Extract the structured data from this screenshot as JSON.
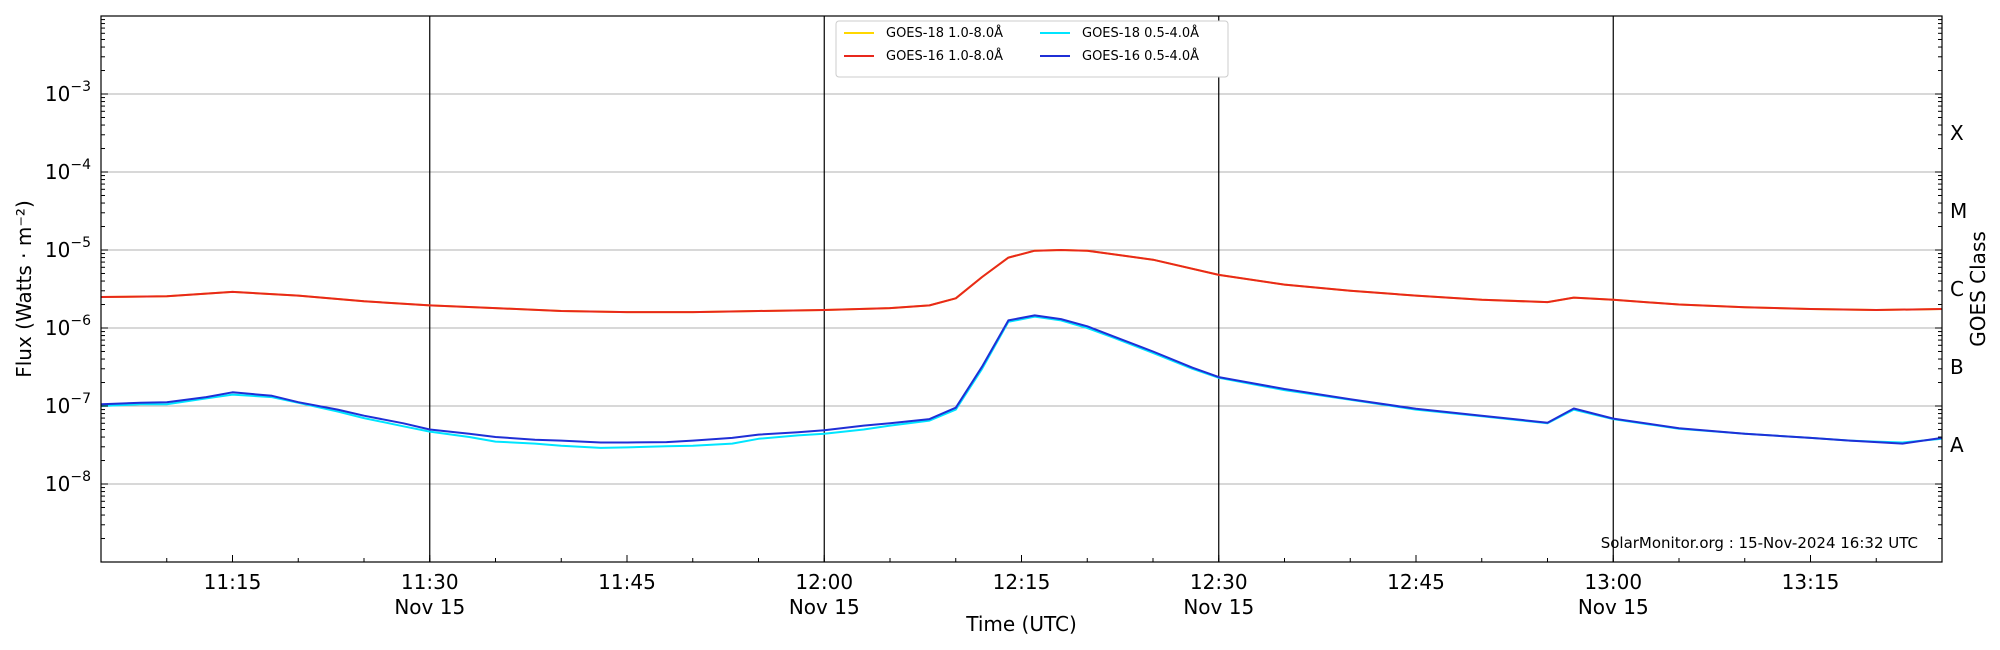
{
  "chart_data": {
    "type": "line",
    "xlabel": "Time (UTC)",
    "ylabel": "Flux (Watts · m⁻²)",
    "y2label": "GOES Class",
    "yscale": "log",
    "ylim": [
      1e-09,
      0.01
    ],
    "xlim": [
      "2024-11-15 11:05",
      "2024-11-15 13:25"
    ],
    "grid": "horizontal",
    "legend_position": "top-center",
    "credit": "SolarMonitor.org : 15-Nov-2024 16:32 UTC",
    "y_ticks": [
      {
        "value": 1e-08,
        "base": "10",
        "exp": "−8"
      },
      {
        "value": 1e-07,
        "base": "10",
        "exp": "−7"
      },
      {
        "value": 1e-06,
        "base": "10",
        "exp": "−6"
      },
      {
        "value": 1e-05,
        "base": "10",
        "exp": "−5"
      },
      {
        "value": 0.0001,
        "base": "10",
        "exp": "−4"
      },
      {
        "value": 0.001,
        "base": "10",
        "exp": "−3"
      }
    ],
    "class_labels": [
      {
        "label": "A",
        "value": 3.16e-08
      },
      {
        "label": "B",
        "value": 3.16e-07
      },
      {
        "label": "C",
        "value": 3.16e-06
      },
      {
        "label": "M",
        "value": 3.16e-05
      },
      {
        "label": "X",
        "value": 0.000316
      }
    ],
    "x_ticks": [
      {
        "time": "11:15",
        "label": "11:15",
        "sublabel": ""
      },
      {
        "time": "11:30",
        "label": "11:30",
        "sublabel": "Nov 15"
      },
      {
        "time": "11:45",
        "label": "11:45",
        "sublabel": ""
      },
      {
        "time": "12:00",
        "label": "12:00",
        "sublabel": "Nov 15"
      },
      {
        "time": "12:15",
        "label": "12:15",
        "sublabel": ""
      },
      {
        "time": "12:30",
        "label": "12:30",
        "sublabel": "Nov 15"
      },
      {
        "time": "12:45",
        "label": "12:45",
        "sublabel": ""
      },
      {
        "time": "13:00",
        "label": "13:00",
        "sublabel": "Nov 15"
      },
      {
        "time": "13:15",
        "label": "13:15",
        "sublabel": ""
      }
    ],
    "vlines": [
      "11:30",
      "12:00",
      "12:30",
      "13:00"
    ],
    "series": [
      {
        "name": "GOES-18 1.0-8.0Å",
        "color": "#ffd700",
        "x": [
          "11:05",
          "11:10",
          "11:15",
          "11:20",
          "11:25",
          "11:30",
          "11:35",
          "11:40",
          "11:45",
          "11:50",
          "11:55",
          "12:00",
          "12:05",
          "12:08",
          "12:10",
          "12:12",
          "12:14",
          "12:16",
          "12:18",
          "12:20",
          "12:25",
          "12:30",
          "12:35",
          "12:40",
          "12:45",
          "12:50",
          "12:55",
          "12:57",
          "13:00",
          "13:05",
          "13:10",
          "13:15",
          "13:20",
          "13:25"
        ],
        "values": [
          2.5e-06,
          2.55e-06,
          2.9e-06,
          2.6e-06,
          2.2e-06,
          1.95e-06,
          1.8e-06,
          1.65e-06,
          1.6e-06,
          1.6e-06,
          1.65e-06,
          1.7e-06,
          1.8e-06,
          1.95e-06,
          2.4e-06,
          4.5e-06,
          8e-06,
          9.8e-06,
          1e-05,
          9.8e-06,
          7.5e-06,
          4.8e-06,
          3.6e-06,
          3e-06,
          2.6e-06,
          2.3e-06,
          2.15e-06,
          2.45e-06,
          2.3e-06,
          2e-06,
          1.85e-06,
          1.75e-06,
          1.7e-06,
          1.75e-06
        ]
      },
      {
        "name": "GOES-18 0.5-4.0Å",
        "color": "#00e5ff",
        "x": [
          "11:05",
          "11:08",
          "11:10",
          "11:13",
          "11:15",
          "11:18",
          "11:20",
          "11:23",
          "11:25",
          "11:28",
          "11:30",
          "11:33",
          "11:35",
          "11:38",
          "11:40",
          "11:43",
          "11:45",
          "11:48",
          "11:50",
          "11:53",
          "11:55",
          "11:58",
          "12:00",
          "12:03",
          "12:05",
          "12:08",
          "12:10",
          "12:12",
          "12:14",
          "12:16",
          "12:18",
          "12:20",
          "12:22",
          "12:25",
          "12:28",
          "12:30",
          "12:35",
          "12:40",
          "12:45",
          "12:50",
          "12:55",
          "12:57",
          "13:00",
          "13:05",
          "13:10",
          "13:15",
          "13:18",
          "13:20",
          "13:22",
          "13:25"
        ],
        "values": [
          1e-07,
          1.05e-07,
          1.05e-07,
          1.25e-07,
          1.4e-07,
          1.3e-07,
          1.1e-07,
          8.5e-08,
          7e-08,
          5.5e-08,
          4.7e-08,
          4e-08,
          3.5e-08,
          3.3e-08,
          3.1e-08,
          2.9e-08,
          2.95e-08,
          3.05e-08,
          3.1e-08,
          3.3e-08,
          3.8e-08,
          4.2e-08,
          4.4e-08,
          5e-08,
          5.6e-08,
          6.5e-08,
          9e-08,
          3e-07,
          1.2e-06,
          1.4e-06,
          1.25e-06,
          1e-06,
          7.5e-07,
          4.8e-07,
          3e-07,
          2.3e-07,
          1.6e-07,
          1.2e-07,
          9e-08,
          7.4e-08,
          6e-08,
          9e-08,
          6.8e-08,
          5.1e-08,
          4.4e-08,
          3.9e-08,
          3.6e-08,
          3.5e-08,
          3.4e-08,
          3.8e-08
        ]
      },
      {
        "name": "GOES-16 1.0-8.0Å",
        "color": "#e8281c",
        "x": [
          "11:05",
          "11:10",
          "11:15",
          "11:20",
          "11:25",
          "11:30",
          "11:35",
          "11:40",
          "11:45",
          "11:50",
          "11:55",
          "12:00",
          "12:05",
          "12:08",
          "12:10",
          "12:12",
          "12:14",
          "12:16",
          "12:18",
          "12:20",
          "12:25",
          "12:30",
          "12:35",
          "12:40",
          "12:45",
          "12:50",
          "12:55",
          "12:57",
          "13:00",
          "13:05",
          "13:10",
          "13:15",
          "13:20",
          "13:25"
        ],
        "values": [
          2.5e-06,
          2.55e-06,
          2.9e-06,
          2.6e-06,
          2.2e-06,
          1.95e-06,
          1.8e-06,
          1.65e-06,
          1.6e-06,
          1.6e-06,
          1.65e-06,
          1.7e-06,
          1.8e-06,
          1.95e-06,
          2.4e-06,
          4.5e-06,
          8e-06,
          9.8e-06,
          1e-05,
          9.8e-06,
          7.5e-06,
          4.8e-06,
          3.6e-06,
          3e-06,
          2.6e-06,
          2.3e-06,
          2.15e-06,
          2.45e-06,
          2.3e-06,
          2e-06,
          1.85e-06,
          1.75e-06,
          1.7e-06,
          1.75e-06
        ]
      },
      {
        "name": "GOES-16 0.5-4.0Å",
        "color": "#1f2fd6",
        "x": [
          "11:05",
          "11:08",
          "11:10",
          "11:13",
          "11:15",
          "11:18",
          "11:20",
          "11:23",
          "11:25",
          "11:28",
          "11:30",
          "11:33",
          "11:35",
          "11:38",
          "11:40",
          "11:43",
          "11:45",
          "11:48",
          "11:50",
          "11:53",
          "11:55",
          "11:58",
          "12:00",
          "12:03",
          "12:05",
          "12:08",
          "12:10",
          "12:12",
          "12:14",
          "12:16",
          "12:18",
          "12:20",
          "12:22",
          "12:25",
          "12:28",
          "12:30",
          "12:35",
          "12:40",
          "12:45",
          "12:50",
          "12:55",
          "12:57",
          "13:00",
          "13:05",
          "13:10",
          "13:15",
          "13:18",
          "13:20",
          "13:22",
          "13:25"
        ],
        "values": [
          1.05e-07,
          1.1e-07,
          1.12e-07,
          1.3e-07,
          1.5e-07,
          1.35e-07,
          1.12e-07,
          9e-08,
          7.5e-08,
          6e-08,
          5e-08,
          4.4e-08,
          4e-08,
          3.7e-08,
          3.6e-08,
          3.4e-08,
          3.4e-08,
          3.45e-08,
          3.6e-08,
          3.9e-08,
          4.3e-08,
          4.6e-08,
          4.9e-08,
          5.6e-08,
          6e-08,
          6.8e-08,
          9.5e-08,
          3.2e-07,
          1.25e-06,
          1.45e-06,
          1.3e-06,
          1.05e-06,
          7.8e-07,
          5e-07,
          3.1e-07,
          2.35e-07,
          1.65e-07,
          1.22e-07,
          9.2e-08,
          7.5e-08,
          6.1e-08,
          9.3e-08,
          6.9e-08,
          5.2e-08,
          4.4e-08,
          3.9e-08,
          3.6e-08,
          3.45e-08,
          3.3e-08,
          3.9e-08
        ]
      }
    ]
  }
}
